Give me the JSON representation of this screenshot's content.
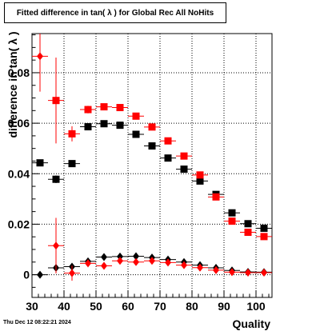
{
  "title": "Fitted difference in tan( λ ) for Global Rec All NoHits",
  "timestamp": "Thu Dec 12 08:22:21 2024",
  "chart_data": {
    "type": "scatter",
    "title": "Fitted difference in tan( λ ) for Global Rec All NoHits",
    "xlabel": "Quality",
    "ylabel": "difference in tan( λ )",
    "xlim": [
      30,
      105
    ],
    "ylim": [
      -0.009,
      0.0955
    ],
    "xticks": [
      30,
      40,
      50,
      60,
      70,
      80,
      90,
      100
    ],
    "yticks": [
      0,
      0.02,
      0.04,
      0.06,
      0.08
    ],
    "xtick_labels": [
      "30",
      "40",
      "50",
      "60",
      "70",
      "80",
      "90",
      "100"
    ],
    "ytick_labels": [
      "0",
      "0.02",
      "0.04",
      "0.06",
      "0.08"
    ],
    "grid": true,
    "legend": "none",
    "series": [
      {
        "marker": "square",
        "color": "#000000",
        "points": [
          {
            "x": 32.5,
            "y": 0.0443,
            "ex": 2.5,
            "ey": 0.0
          },
          {
            "x": 37.5,
            "y": 0.0378,
            "ex": 2.5,
            "ey": 0.0015
          },
          {
            "x": 42.5,
            "y": 0.044,
            "ex": 2.5,
            "ey": 0.001
          },
          {
            "x": 47.5,
            "y": 0.0586,
            "ex": 2.5,
            "ey": 0.0006
          },
          {
            "x": 52.5,
            "y": 0.0598,
            "ex": 2.5,
            "ey": 0.0005
          },
          {
            "x": 57.5,
            "y": 0.0592,
            "ex": 2.5,
            "ey": 0.0005
          },
          {
            "x": 62.5,
            "y": 0.0556,
            "ex": 2.5,
            "ey": 0.0005
          },
          {
            "x": 67.5,
            "y": 0.051,
            "ex": 2.5,
            "ey": 0.0005
          },
          {
            "x": 72.5,
            "y": 0.0462,
            "ex": 2.5,
            "ey": 0.0005
          },
          {
            "x": 77.5,
            "y": 0.0418,
            "ex": 2.5,
            "ey": 0.0005
          },
          {
            "x": 82.5,
            "y": 0.0371,
            "ex": 2.5,
            "ey": 0.0005
          },
          {
            "x": 87.5,
            "y": 0.0318,
            "ex": 2.5,
            "ey": 0.0005
          },
          {
            "x": 92.5,
            "y": 0.0245,
            "ex": 2.5,
            "ey": 0.0005
          },
          {
            "x": 97.5,
            "y": 0.0202,
            "ex": 2.5,
            "ey": 0.0005
          },
          {
            "x": 102.5,
            "y": 0.0184,
            "ex": 2.5,
            "ey": 0.0005
          }
        ]
      },
      {
        "marker": "square",
        "color": "#ff0000",
        "points": [
          {
            "x": 37.5,
            "y": 0.069,
            "ex": 2.5,
            "ey": 0.017
          },
          {
            "x": 42.5,
            "y": 0.0558,
            "ex": 2.5,
            "ey": 0.003
          },
          {
            "x": 47.5,
            "y": 0.0654,
            "ex": 2.5,
            "ey": 0.0015
          },
          {
            "x": 52.5,
            "y": 0.0665,
            "ex": 2.5,
            "ey": 0.001
          },
          {
            "x": 57.5,
            "y": 0.0662,
            "ex": 2.5,
            "ey": 0.0008
          },
          {
            "x": 62.5,
            "y": 0.0628,
            "ex": 2.5,
            "ey": 0.0008
          },
          {
            "x": 67.5,
            "y": 0.0585,
            "ex": 2.5,
            "ey": 0.0007
          },
          {
            "x": 72.5,
            "y": 0.053,
            "ex": 2.5,
            "ey": 0.0007
          },
          {
            "x": 77.5,
            "y": 0.047,
            "ex": 2.5,
            "ey": 0.0007
          },
          {
            "x": 82.5,
            "y": 0.0395,
            "ex": 2.5,
            "ey": 0.0007
          },
          {
            "x": 87.5,
            "y": 0.0308,
            "ex": 2.5,
            "ey": 0.0007
          },
          {
            "x": 92.5,
            "y": 0.0212,
            "ex": 2.5,
            "ey": 0.0007
          },
          {
            "x": 97.5,
            "y": 0.0168,
            "ex": 2.5,
            "ey": 0.0007
          },
          {
            "x": 102.5,
            "y": 0.0151,
            "ex": 2.5,
            "ey": 0.0007
          }
        ]
      },
      {
        "marker": "diamond",
        "color": "#000000",
        "points": [
          {
            "x": 32.5,
            "y": 0.0,
            "ex": 2.5,
            "ey": 0.0
          },
          {
            "x": 37.5,
            "y": 0.0027,
            "ex": 2.5,
            "ey": 0.0008
          },
          {
            "x": 42.5,
            "y": 0.0032,
            "ex": 2.5,
            "ey": 0.0006
          },
          {
            "x": 47.5,
            "y": 0.0053,
            "ex": 2.5,
            "ey": 0.0004
          },
          {
            "x": 52.5,
            "y": 0.007,
            "ex": 2.5,
            "ey": 0.0003
          },
          {
            "x": 57.5,
            "y": 0.0072,
            "ex": 2.5,
            "ey": 0.0003
          },
          {
            "x": 62.5,
            "y": 0.0073,
            "ex": 2.5,
            "ey": 0.0003
          },
          {
            "x": 67.5,
            "y": 0.0068,
            "ex": 2.5,
            "ey": 0.0003
          },
          {
            "x": 72.5,
            "y": 0.006,
            "ex": 2.5,
            "ey": 0.0003
          },
          {
            "x": 77.5,
            "y": 0.005,
            "ex": 2.5,
            "ey": 0.0003
          },
          {
            "x": 82.5,
            "y": 0.0038,
            "ex": 2.5,
            "ey": 0.0003
          },
          {
            "x": 87.5,
            "y": 0.0027,
            "ex": 2.5,
            "ey": 0.0003
          },
          {
            "x": 92.5,
            "y": 0.0017,
            "ex": 2.5,
            "ey": 0.0003
          },
          {
            "x": 97.5,
            "y": 0.0011,
            "ex": 2.5,
            "ey": 0.0003
          },
          {
            "x": 102.5,
            "y": 0.001,
            "ex": 2.5,
            "ey": 0.0003
          }
        ]
      },
      {
        "marker": "diamond",
        "color": "#ff0000",
        "points": [
          {
            "x": 32.5,
            "y": 0.0865,
            "ex": 2.5,
            "ey": 0.014
          },
          {
            "x": 37.5,
            "y": 0.0115,
            "ex": 2.5,
            "ey": 0.011
          },
          {
            "x": 42.5,
            "y": 0.0006,
            "ex": 2.5,
            "ey": 0.003
          },
          {
            "x": 47.5,
            "y": 0.0045,
            "ex": 2.5,
            "ey": 0.0015
          },
          {
            "x": 52.5,
            "y": 0.0035,
            "ex": 2.5,
            "ey": 0.0008
          },
          {
            "x": 57.5,
            "y": 0.0055,
            "ex": 2.5,
            "ey": 0.0006
          },
          {
            "x": 62.5,
            "y": 0.005,
            "ex": 2.5,
            "ey": 0.0005
          },
          {
            "x": 67.5,
            "y": 0.0055,
            "ex": 2.5,
            "ey": 0.0005
          },
          {
            "x": 72.5,
            "y": 0.0048,
            "ex": 2.5,
            "ey": 0.0005
          },
          {
            "x": 77.5,
            "y": 0.0038,
            "ex": 2.5,
            "ey": 0.0005
          },
          {
            "x": 82.5,
            "y": 0.0028,
            "ex": 2.5,
            "ey": 0.0005
          },
          {
            "x": 87.5,
            "y": 0.0018,
            "ex": 2.5,
            "ey": 0.0005
          },
          {
            "x": 92.5,
            "y": 0.001,
            "ex": 2.5,
            "ey": 0.0005
          },
          {
            "x": 97.5,
            "y": 0.0008,
            "ex": 2.5,
            "ey": 0.0005
          },
          {
            "x": 102.5,
            "y": 0.0008,
            "ex": 2.5,
            "ey": 0.0005
          }
        ]
      }
    ]
  }
}
